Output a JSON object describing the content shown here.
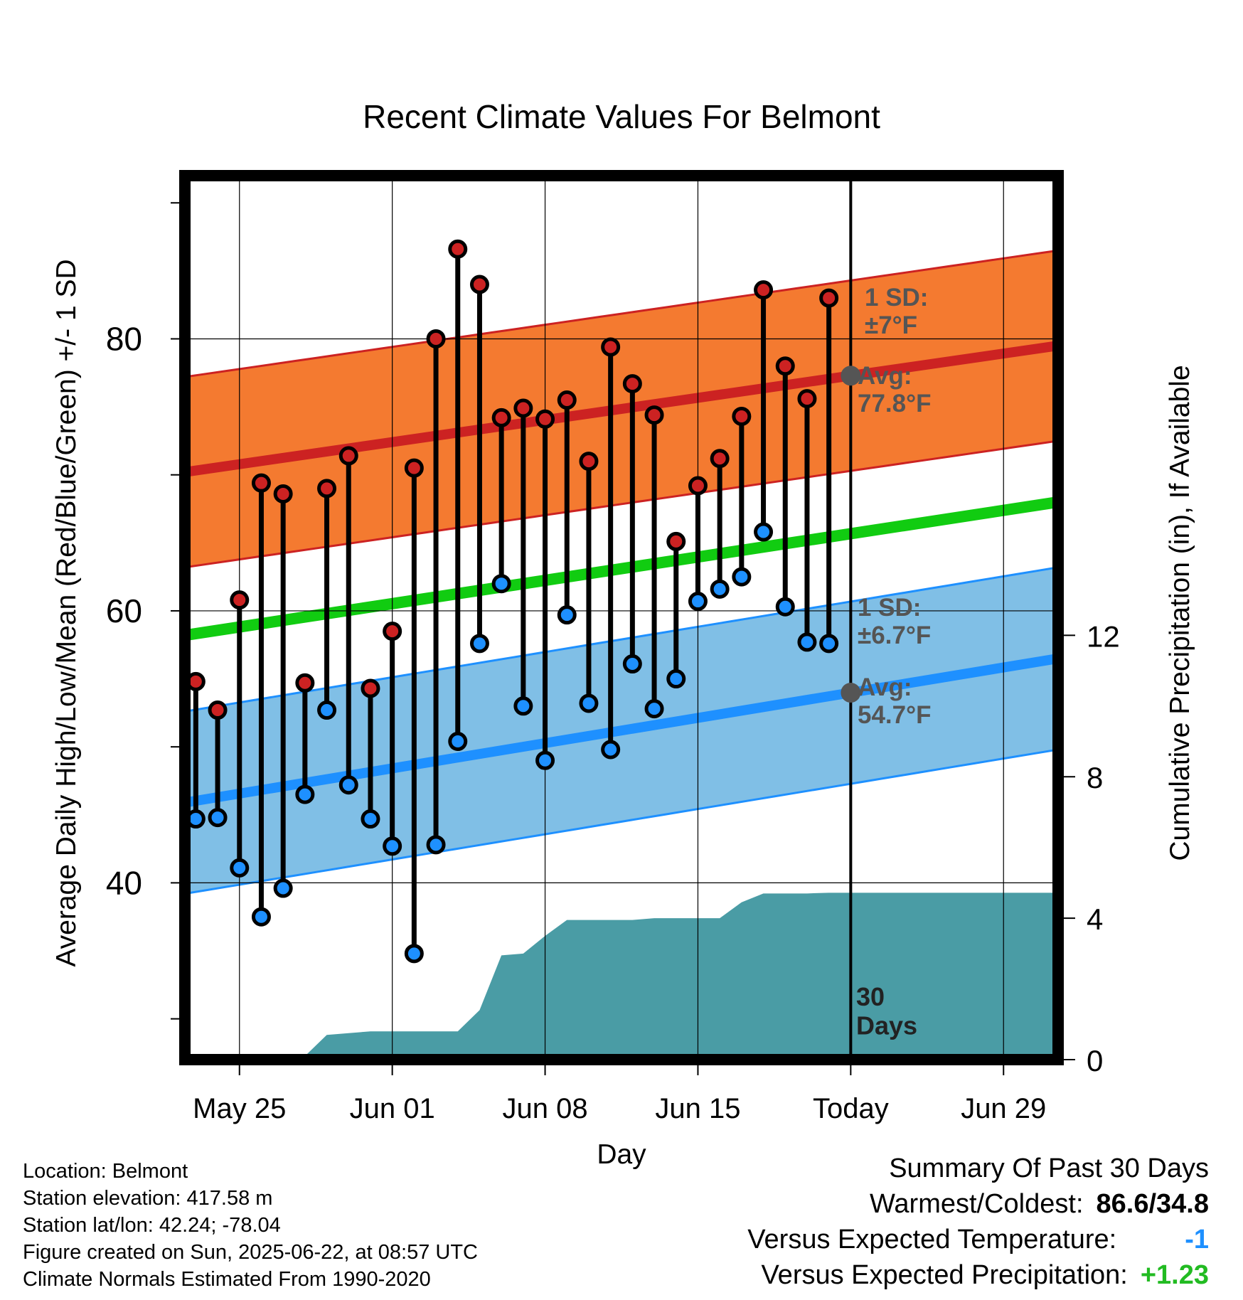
{
  "chart_data": {
    "type": "line",
    "title": "Recent Climate Values For Belmont",
    "xlabel": "Day",
    "ylabel": "Average Daily High/Low/Mean (Red/Blue/Green) +/- 1 SD",
    "y2label": "Cumulative Precipitation (in), If Available",
    "x_ticks": [
      "May 25",
      "Jun 01",
      "Jun 08",
      "Jun 15",
      "Today",
      "Jun 29"
    ],
    "x_range_days_from_today": [
      -30.5,
      9.5
    ],
    "ylim": [
      27,
      92
    ],
    "y_ticks": [
      40,
      60,
      80
    ],
    "y2lim": [
      0,
      25
    ],
    "y2_ticks": [
      0,
      4,
      8,
      12
    ],
    "grid": true,
    "today_label": "30\nDays",
    "series": [
      {
        "name": "High",
        "color": "#cc2222",
        "values": [
          54.8,
          52.7,
          60.8,
          69.4,
          68.6,
          54.7,
          69.0,
          71.4,
          54.3,
          58.5,
          70.5,
          80.0,
          86.6,
          84.0,
          74.2,
          74.9,
          74.1,
          75.5,
          71.0,
          79.4,
          76.7,
          74.4,
          65.1,
          69.2,
          71.2,
          74.3,
          83.6,
          78.0,
          75.6,
          83.0
        ]
      },
      {
        "name": "Low",
        "color": "#1e90ff",
        "values": [
          44.7,
          44.8,
          41.1,
          37.5,
          39.6,
          46.5,
          52.7,
          47.2,
          44.7,
          42.7,
          34.8,
          42.8,
          50.4,
          57.6,
          62.0,
          53.0,
          49.0,
          59.7,
          53.2,
          49.8,
          56.1,
          52.8,
          55.0,
          60.7,
          61.6,
          62.5,
          65.8,
          60.3,
          57.7,
          57.6
        ]
      }
    ],
    "normals": {
      "high_avg": [
        70.2,
        79.5
      ],
      "high_sd": 7.0,
      "low_avg": [
        45.9,
        56.5
      ],
      "low_sd": 6.7,
      "mean_avg": [
        58.2,
        68.0
      ]
    },
    "precip_cumulative": [
      0,
      0,
      0,
      0,
      0,
      0.1,
      0.7,
      0.75,
      0.8,
      0.8,
      0.8,
      0.8,
      0.8,
      1.4,
      2.95,
      3.0,
      3.5,
      3.95,
      3.95,
      3.95,
      3.95,
      4.0,
      4.0,
      4.0,
      4.0,
      4.45,
      4.7,
      4.7,
      4.7,
      4.72,
      4.72
    ],
    "annotations": {
      "high_sd": "1 SD:\n±7°F",
      "high_avg": "Avg:\n77.8°F",
      "low_sd": "1 SD:\n±6.7°F",
      "low_avg": "Avg:\n54.7°F"
    }
  },
  "info": {
    "location": "Location: Belmont",
    "elevation": "Station elevation: 417.58 m",
    "latlon": "Station lat/lon: 42.24; -78.04",
    "created": "Figure created on Sun, 2025-06-22, at 08:57 UTC",
    "normals": "Climate Normals Estimated From 1990-2020"
  },
  "summary": {
    "title": "Summary Of Past 30 Days",
    "warm_cold_label": "Warmest/Coldest:",
    "warm_cold_value": "86.6/34.8",
    "temp_label": "Versus Expected Temperature:",
    "temp_value": "-1",
    "temp_color": "#1e90ff",
    "precip_label": "Versus Expected Precipitation:",
    "precip_value": "+1.23",
    "precip_color": "#22bb22"
  }
}
